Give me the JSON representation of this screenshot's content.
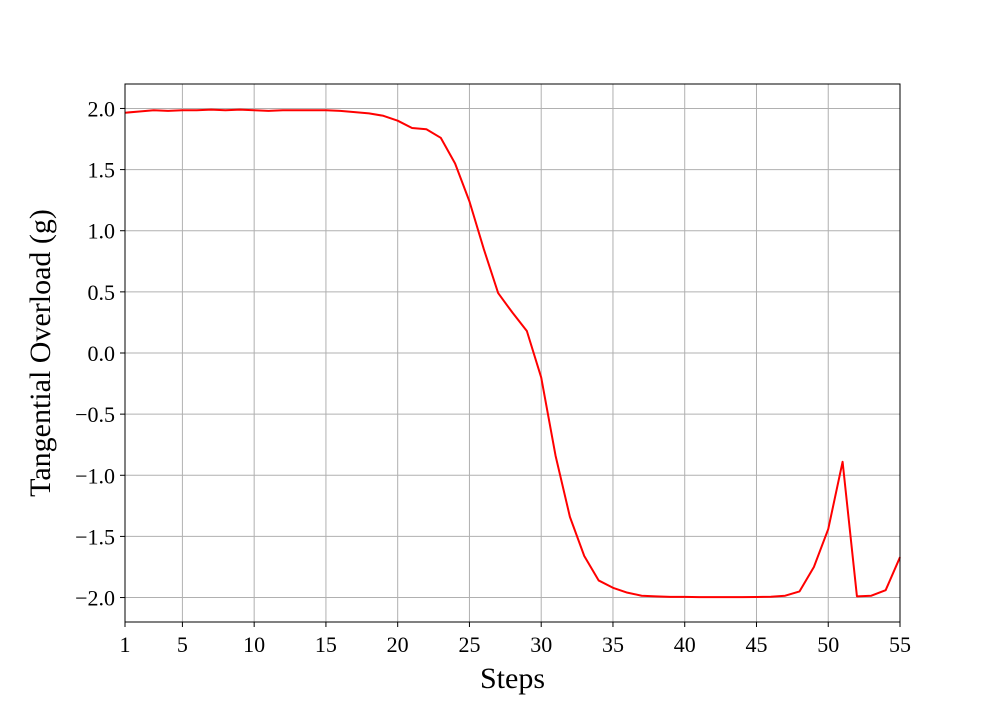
{
  "chart_data": {
    "type": "line",
    "title": "",
    "xlabel": "Steps",
    "ylabel": "Tangential Overload (g)",
    "xlim": [
      1,
      55
    ],
    "ylim": [
      -2.2,
      2.2
    ],
    "xticks": [
      1,
      5,
      10,
      15,
      20,
      25,
      30,
      35,
      40,
      45,
      50,
      55
    ],
    "xtick_labels": [
      "1",
      "5",
      "10",
      "15",
      "20",
      "25",
      "30",
      "35",
      "40",
      "45",
      "50",
      "55"
    ],
    "yticks": [
      2.0,
      1.5,
      1.0,
      0.5,
      0.0,
      -0.5,
      -1.0,
      -1.5,
      -2.0
    ],
    "ytick_labels": [
      "2.0",
      "1.5",
      "1.0",
      "0.5",
      "0.0",
      "−0.5",
      "−1.0",
      "−1.5",
      "−2.0"
    ],
    "grid": true,
    "legend": "none",
    "series": [
      {
        "color": "#ff0000",
        "x": [
          1,
          2,
          3,
          4,
          5,
          6,
          7,
          8,
          9,
          10,
          11,
          12,
          13,
          14,
          15,
          16,
          17,
          18,
          19,
          20,
          21,
          22,
          23,
          24,
          25,
          26,
          27,
          28,
          29,
          30,
          31,
          32,
          33,
          34,
          35,
          36,
          37,
          38,
          39,
          40,
          41,
          42,
          43,
          44,
          45,
          46,
          47,
          48,
          49,
          50,
          51,
          52,
          53,
          54,
          55
        ],
        "y": [
          1.965,
          1.975,
          1.985,
          1.98,
          1.985,
          1.985,
          1.99,
          1.985,
          1.99,
          1.985,
          1.98,
          1.985,
          1.985,
          1.985,
          1.985,
          1.98,
          1.97,
          1.96,
          1.94,
          1.9,
          1.84,
          1.83,
          1.76,
          1.55,
          1.24,
          0.85,
          0.49,
          0.33,
          0.18,
          -0.2,
          -0.84,
          -1.34,
          -1.66,
          -1.86,
          -1.92,
          -1.96,
          -1.985,
          -1.99,
          -1.995,
          -1.995,
          -1.997,
          -1.997,
          -1.997,
          -1.997,
          -1.996,
          -1.993,
          -1.985,
          -1.95,
          -1.75,
          -1.44,
          -0.89,
          -1.99,
          -1.985,
          -1.94,
          -1.67
        ]
      }
    ]
  }
}
